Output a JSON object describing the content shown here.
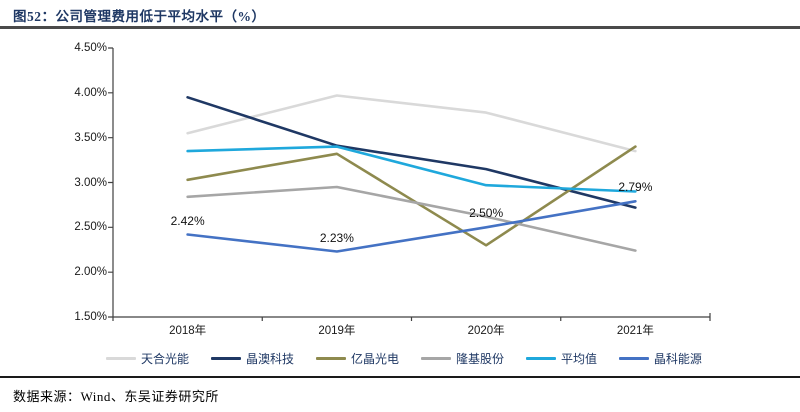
{
  "header": {
    "title": "图52：公司管理费用低于平均水平（%）"
  },
  "footer": {
    "source": "数据来源：Wind、东吴证券研究所"
  },
  "chart_data": {
    "type": "line",
    "title": "公司管理费用低于平均水平（%）",
    "categories": [
      "2018年",
      "2019年",
      "2020年",
      "2021年"
    ],
    "series": [
      {
        "name": "天合光能",
        "color": "#D9D9D9",
        "values": [
          3.55,
          3.97,
          3.78,
          3.35
        ]
      },
      {
        "name": "晶澳科技",
        "color": "#1F3864",
        "values": [
          3.95,
          3.41,
          3.15,
          2.72
        ]
      },
      {
        "name": "亿晶光电",
        "color": "#8E8A4E",
        "values": [
          3.03,
          3.32,
          2.3,
          3.4
        ]
      },
      {
        "name": "隆基股份",
        "color": "#A6A6A6",
        "values": [
          2.84,
          2.95,
          2.62,
          2.24
        ]
      },
      {
        "name": "平均值",
        "color": "#1FA8DC",
        "values": [
          3.35,
          3.4,
          2.97,
          2.9
        ]
      },
      {
        "name": "晶科能源",
        "color": "#4472C4",
        "values": [
          2.42,
          2.23,
          2.5,
          2.79
        ],
        "point_labels": [
          "2.42%",
          "2.23%",
          "2.50%",
          "2.79%"
        ]
      }
    ],
    "yticks": [
      "4.50%",
      "4.00%",
      "3.50%",
      "3.00%",
      "2.50%",
      "2.00%",
      "1.50%"
    ],
    "ylim": [
      1.5,
      4.5
    ],
    "grid": false,
    "legend_position": "bottom",
    "axis_color": "#404040"
  }
}
